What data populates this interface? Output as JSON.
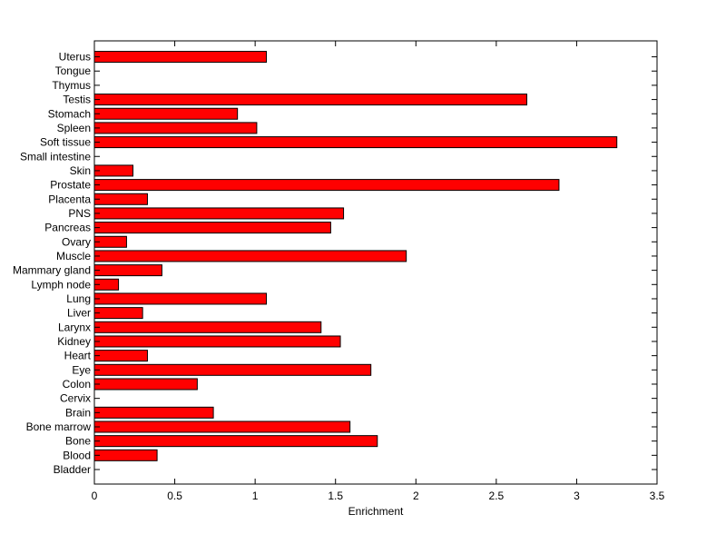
{
  "chart_data": {
    "type": "bar",
    "orientation": "horizontal",
    "categories": [
      "Bladder",
      "Blood",
      "Bone",
      "Bone marrow",
      "Brain",
      "Cervix",
      "Colon",
      "Eye",
      "Heart",
      "Kidney",
      "Larynx",
      "Liver",
      "Lung",
      "Lymph node",
      "Mammary gland",
      "Muscle",
      "Ovary",
      "Pancreas",
      "PNS",
      "Placenta",
      "Prostate",
      "Skin",
      "Small intestine",
      "Soft tissue",
      "Spleen",
      "Stomach",
      "Testis",
      "Thymus",
      "Tongue",
      "Uterus"
    ],
    "values": [
      0,
      0.39,
      1.76,
      1.59,
      0.74,
      0,
      0.64,
      1.72,
      0.33,
      1.53,
      1.41,
      0.3,
      1.07,
      0.15,
      0.42,
      1.94,
      0.2,
      1.47,
      1.55,
      0.33,
      2.89,
      0.24,
      0,
      3.25,
      1.01,
      0.89,
      2.69,
      0,
      0,
      1.07
    ],
    "xlabel": "Enrichment",
    "ylabel": "",
    "xlim": [
      0,
      3.5
    ],
    "xticks": [
      "0",
      "0.5",
      "1",
      "1.5",
      "2",
      "2.5",
      "3",
      "3.5"
    ],
    "grid": false,
    "bar_color": "#ff0000",
    "bar_edge_color": "#000000"
  }
}
